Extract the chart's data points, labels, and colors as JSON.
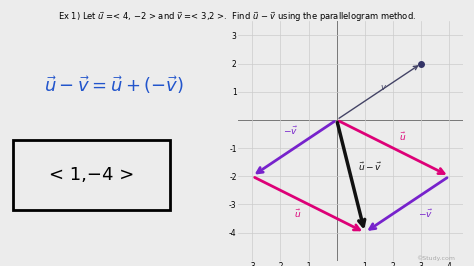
{
  "bg_color": "#ececec",
  "title": "Ex 1) Let $\\vec{u}$ =< 4, −2 > and $\\vec{v}$ =< 3,2 >.  Find $\\vec{u}$ − $\\vec{v}$ using the parallelogram method.",
  "equation": "$\\vec{u}-\\vec{v}=\\vec{u}+(-\\vec{v})$",
  "answer": "< 1,−4 >",
  "color_eq": "#2255cc",
  "color_u": "#dd0077",
  "color_neg_v": "#7722cc",
  "color_v_thin": "#444466",
  "color_resultant": "#111111",
  "color_grid": "#cccccc",
  "xlim": [
    -3.5,
    4.5
  ],
  "ylim": [
    -5.0,
    3.5
  ],
  "xticks": [
    -3,
    -2,
    -1,
    1,
    2,
    3,
    4
  ],
  "yticks": [
    -4,
    -3,
    -2,
    -1,
    1,
    2,
    3
  ]
}
